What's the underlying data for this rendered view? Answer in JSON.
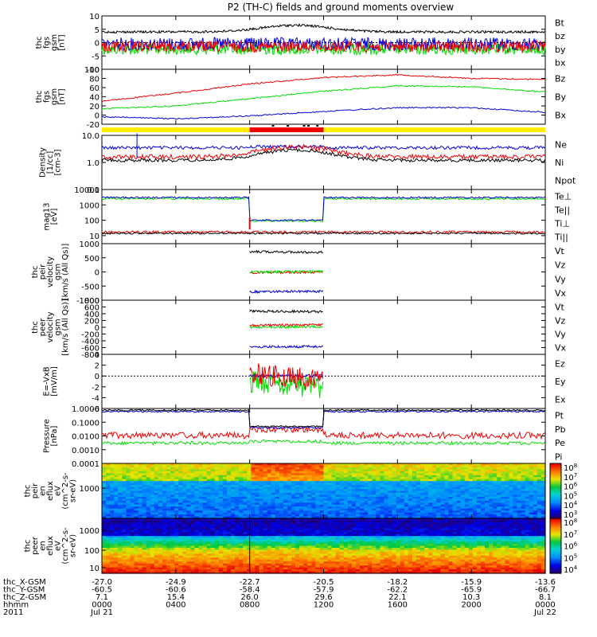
{
  "title": "P2 (TH-C) fields and ground moments overview",
  "colors": {
    "black": "#000000",
    "red": "#ee0000",
    "green": "#00dd00",
    "blue": "#0000dd",
    "yellow": "#ffee00",
    "bar_red": "#ee0000"
  },
  "chart_data": [
    {
      "type": "line",
      "ylabel": [
        "thc",
        "fgs",
        "gsm",
        "[nT]"
      ],
      "ylim": [
        -10,
        10
      ],
      "yticks": [
        "10",
        "5",
        "0",
        "-5",
        "-10"
      ],
      "legend": [
        {
          "name": "Bt",
          "color": "#000000"
        },
        {
          "name": "bz",
          "color": "#ee0000"
        },
        {
          "name": "by",
          "color": "#00dd00"
        },
        {
          "name": "bx",
          "color": "#0000dd"
        }
      ]
    },
    {
      "type": "line",
      "ylabel": [
        "thc",
        "fgs",
        "gsm",
        "[nT]"
      ],
      "ylim": [
        -20,
        100
      ],
      "yticks": [
        "100",
        "80",
        "60",
        "40",
        "20",
        "0",
        "-20"
      ],
      "legend": [
        {
          "name": "Bz",
          "color": "#ee0000"
        },
        {
          "name": "By",
          "color": "#00dd00"
        },
        {
          "name": "Bx",
          "color": "#0000dd"
        }
      ],
      "series": [
        {
          "name": "Bz",
          "x": [
            0,
            4,
            8,
            12,
            16,
            20,
            24
          ],
          "values": [
            30,
            48,
            68,
            82,
            88,
            80,
            78
          ]
        },
        {
          "name": "By",
          "x": [
            0,
            4,
            8,
            12,
            16,
            20,
            24
          ],
          "values": [
            14,
            20,
            36,
            52,
            64,
            62,
            50
          ]
        },
        {
          "name": "Bx",
          "x": [
            0,
            4,
            8,
            12,
            16,
            20,
            24
          ],
          "values": [
            -4,
            -8,
            -2,
            8,
            16,
            16,
            6
          ]
        }
      ]
    },
    {
      "type": "line",
      "ylabel": [
        "Density",
        "[1/cc]",
        "[cm-3]"
      ],
      "ylim": [
        0.1,
        10
      ],
      "yscale": "log",
      "yticks": [
        "10.0",
        "1.0",
        "0.1"
      ],
      "legend": [
        {
          "name": "Ne",
          "color": "#ee0000"
        },
        {
          "name": "Ni",
          "color": "#000000"
        },
        {
          "name": "Npot",
          "color": "#0000dd"
        }
      ]
    },
    {
      "type": "line",
      "ylabel": [
        "mag13",
        "[eV]"
      ],
      "ylim": [
        3,
        10000
      ],
      "yscale": "log",
      "yticks": [
        "10000",
        "1000",
        "100",
        "10"
      ],
      "legend": [
        {
          "name": "Te⊥",
          "color": "#ee0000"
        },
        {
          "name": "Te||",
          "color": "#000000"
        },
        {
          "name": "Ti⊥",
          "color": "#ee0000"
        },
        {
          "name": "Ti||",
          "color": "#00dd00"
        }
      ]
    },
    {
      "type": "line",
      "ylabel": [
        "thc",
        "peir",
        "velocity",
        "gsm",
        "[km/s (All Qs)]"
      ],
      "ylim": [
        -1000,
        1000
      ],
      "yticks": [
        "1000",
        "500",
        "0",
        "-500",
        "-1000"
      ],
      "legend": [
        {
          "name": "Vt",
          "color": "#000000"
        },
        {
          "name": "Vz",
          "color": "#ee0000"
        },
        {
          "name": "Vy",
          "color": "#00dd00"
        },
        {
          "name": "Vx",
          "color": "#0000dd"
        }
      ],
      "series": [
        {
          "name": "Vt",
          "x": [
            8,
            12
          ],
          "values": [
            720,
            690
          ]
        },
        {
          "name": "Vz",
          "x": [
            8,
            12
          ],
          "values": [
            -20,
            -10
          ]
        },
        {
          "name": "Vy",
          "x": [
            8,
            12
          ],
          "values": [
            0,
            10
          ]
        },
        {
          "name": "Vx",
          "x": [
            8,
            12
          ],
          "values": [
            -700,
            -690
          ]
        }
      ]
    },
    {
      "type": "line",
      "ylabel": [
        "thc",
        "peer",
        "velocity",
        "gsm",
        "[km/s (All Qs)]"
      ],
      "ylim": [
        -800,
        800
      ],
      "yticks": [
        "800",
        "600",
        "400",
        "200",
        "0",
        "-200",
        "-400",
        "-600",
        "-800"
      ],
      "legend": [
        {
          "name": "Vt",
          "color": "#000000"
        },
        {
          "name": "Vz",
          "color": "#ee0000"
        },
        {
          "name": "Vy",
          "color": "#00dd00"
        },
        {
          "name": "Vx",
          "color": "#0000dd"
        }
      ],
      "series": [
        {
          "name": "Vt",
          "x": [
            8,
            12
          ],
          "values": [
            480,
            460
          ]
        },
        {
          "name": "Vz",
          "x": [
            8,
            12
          ],
          "values": [
            60,
            70
          ]
        },
        {
          "name": "Vy",
          "x": [
            8,
            12
          ],
          "values": [
            0,
            20
          ]
        },
        {
          "name": "Vx",
          "x": [
            8,
            12
          ],
          "values": [
            -580,
            -570
          ]
        }
      ]
    },
    {
      "type": "line",
      "ylabel": [
        "E=-VxB",
        "[mV/m]"
      ],
      "ylim": [
        -6,
        4
      ],
      "yticks": [
        "4",
        "2",
        "0",
        "-2",
        "-4",
        "-6"
      ],
      "legend": [
        {
          "name": "Ez",
          "color": "#ee0000"
        },
        {
          "name": "Ey",
          "color": "#00dd00"
        },
        {
          "name": "Ex",
          "color": "#0000dd"
        }
      ]
    },
    {
      "type": "line",
      "ylabel": [
        "Pressure",
        "[nPa]"
      ],
      "ylim": [
        0.0001,
        1
      ],
      "yscale": "log",
      "yticks": [
        "1.0000",
        "0.1000",
        "0.0100",
        "0.0010",
        "0.0001"
      ],
      "legend": [
        {
          "name": "Pt",
          "color": "#000000"
        },
        {
          "name": "Pb",
          "color": "#ee0000"
        },
        {
          "name": "Pe",
          "color": "#00dd00"
        },
        {
          "name": "Pi",
          "color": "#0000dd"
        }
      ]
    },
    {
      "type": "heatmap",
      "ylabel": [
        "thc",
        "peir",
        "en",
        "eflux",
        "eV",
        "(cm^2-s-",
        "sr-eV)"
      ],
      "yscale": "log",
      "yticks": [
        "1000"
      ],
      "colorbar": {
        "labels": [
          "10^8",
          "10^7",
          "10^6",
          "10^5",
          "10^4",
          "10^3"
        ],
        "min": "10^3",
        "max": "10^8"
      }
    },
    {
      "type": "heatmap",
      "ylabel": [
        "thc",
        "peer",
        "en",
        "eflux",
        "eV",
        "(cm^2-s-",
        "sr-eV)"
      ],
      "yscale": "log",
      "yticks": [
        "1000",
        "100",
        "10"
      ],
      "colorbar": {
        "labels": [
          "10^8",
          "10^7",
          "10^6",
          "10^5",
          "10^4"
        ],
        "min": "10^4",
        "max": "10^8"
      }
    }
  ],
  "xaxis": {
    "row_labels": [
      "thc_X-GSM",
      "thc_Y-GSM",
      "thc_Z-GSM",
      "hhmm",
      "2011"
    ],
    "columns": [
      {
        "x": "-27.0",
        "y": "-60.5",
        "z": "7.1",
        "hhmm": "0000",
        "date": "Jul 21"
      },
      {
        "x": "-24.9",
        "y": "-60.6",
        "z": "15.4",
        "hhmm": "0400",
        "date": ""
      },
      {
        "x": "-22.7",
        "y": "-58.4",
        "z": "26.0",
        "hhmm": "0800",
        "date": ""
      },
      {
        "x": "-20.5",
        "y": "-57.9",
        "z": "29.6",
        "hhmm": "1200",
        "date": ""
      },
      {
        "x": "-18.2",
        "y": "-62.2",
        "z": "22.1",
        "hhmm": "1600",
        "date": ""
      },
      {
        "x": "-15.9",
        "y": "-65.9",
        "z": "10.3",
        "hhmm": "2000",
        "date": ""
      },
      {
        "x": "-13.6",
        "y": "-66.7",
        "z": "8.1",
        "hhmm": "0000",
        "date": "Jul 22"
      }
    ]
  }
}
